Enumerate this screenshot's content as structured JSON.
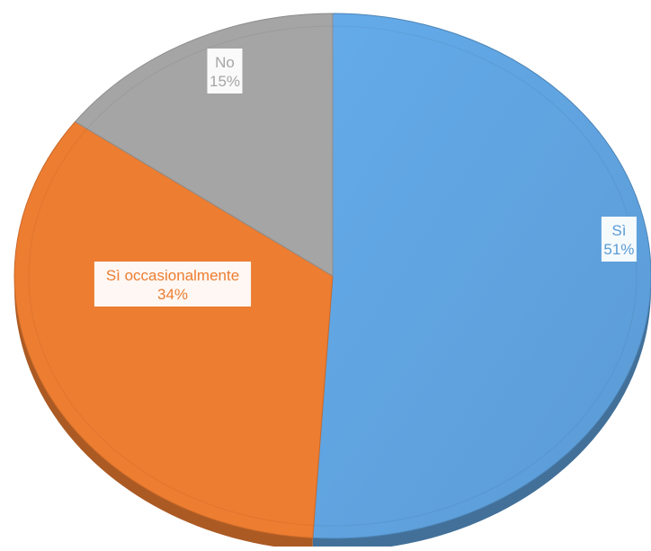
{
  "chart_data": {
    "type": "pie",
    "title": "",
    "style": "3d-tilted",
    "legend": "none",
    "start": "12-o-clock",
    "direction": "clockwise",
    "slices": [
      {
        "label": "Sì",
        "value": 51,
        "value_label": "51%",
        "color": "#5B9BD5",
        "label_position": "right-edge"
      },
      {
        "label": "Sì occasionalmente",
        "value": 34,
        "value_label": "34%",
        "color": "#ED7D31",
        "label_position": "left-inside"
      },
      {
        "label": "No",
        "value": 15,
        "value_label": "15%",
        "color": "#A5A5A5",
        "label_position": "top-inside"
      }
    ]
  }
}
